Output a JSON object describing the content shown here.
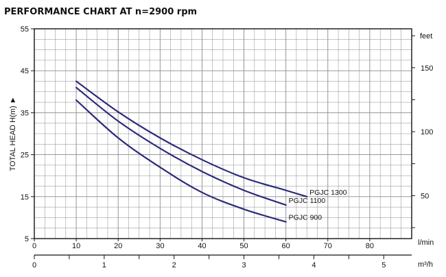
{
  "chart_data": {
    "type": "line",
    "title": "PERFORMANCE CHART AT  n=2900 rpm",
    "ylabel": "TOTAL HEAD H(m) ►",
    "x_unit_primary": "l/min",
    "x_unit_secondary": "m³/h",
    "y_unit_secondary": "feet",
    "xlim": [
      0,
      90
    ],
    "ylim": [
      5,
      55
    ],
    "x_ticks": [
      "0",
      "10",
      "20",
      "30",
      "40",
      "50",
      "60",
      "70",
      "80"
    ],
    "y_ticks": [
      "5",
      "15",
      "25",
      "35",
      "45",
      "55"
    ],
    "y2_ticks": [
      "50",
      "100",
      "150"
    ],
    "x2_ticks": [
      "0",
      "1",
      "2",
      "3",
      "4",
      "5"
    ],
    "series": [
      {
        "name": "PGJC 1300",
        "x": [
          10,
          20,
          30,
          40,
          50,
          60,
          65
        ],
        "y": [
          42.5,
          35.2,
          29.0,
          23.8,
          19.5,
          16.5,
          15.0
        ]
      },
      {
        "name": "PGJC 1100",
        "x": [
          10,
          20,
          30,
          40,
          50,
          60
        ],
        "y": [
          41.0,
          33.0,
          26.5,
          21.0,
          16.5,
          13.0
        ]
      },
      {
        "name": "PGJC 900",
        "x": [
          10,
          20,
          30,
          40,
          50,
          60
        ],
        "y": [
          38.0,
          29.0,
          22.0,
          16.0,
          12.0,
          9.0
        ]
      }
    ],
    "line_color": "#2a2a7a",
    "grid": true
  }
}
